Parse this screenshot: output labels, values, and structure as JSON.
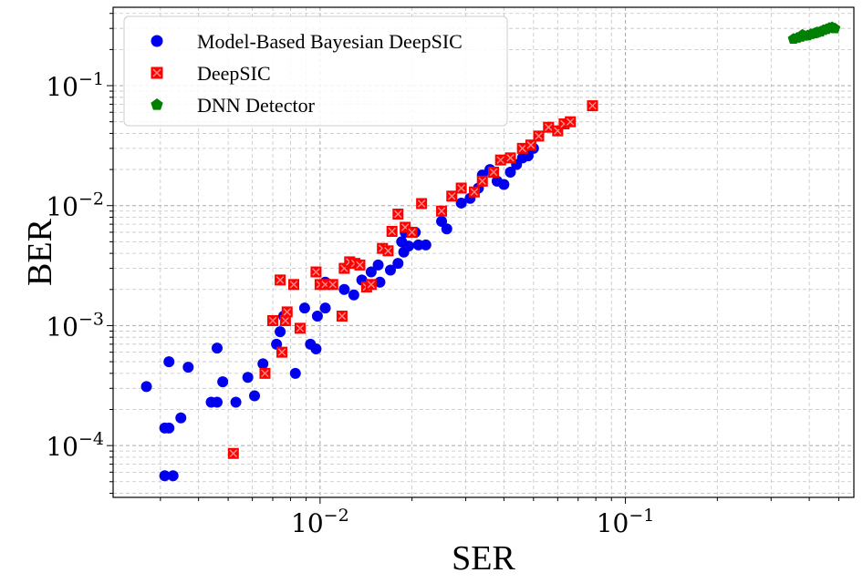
{
  "chart_data": {
    "type": "scatter",
    "xlabel": "SER",
    "ylabel": "BER",
    "xscale": "log",
    "yscale": "log",
    "xlim": [
      0.0021,
      0.56
    ],
    "ylim": [
      3.7e-05,
      0.45
    ],
    "grid": true,
    "grid_minor": true,
    "legend_position": "top-left",
    "xticks": [
      {
        "value": 0.01,
        "base": "10",
        "exp": "−2"
      },
      {
        "value": 0.1,
        "base": "10",
        "exp": "−1"
      }
    ],
    "yticks": [
      {
        "value": 0.0001,
        "base": "10",
        "exp": "−4"
      },
      {
        "value": 0.001,
        "base": "10",
        "exp": "−3"
      },
      {
        "value": 0.01,
        "base": "10",
        "exp": "−2"
      },
      {
        "value": 0.1,
        "base": "10",
        "exp": "−1"
      }
    ],
    "series": [
      {
        "name": "Model-Based Bayesian DeepSIC",
        "color": "#0000ee",
        "marker": "circle",
        "points": [
          [
            0.0027,
            0.00031
          ],
          [
            0.0031,
            0.00014
          ],
          [
            0.0032,
            0.00014
          ],
          [
            0.0032,
            0.0005
          ],
          [
            0.0035,
            0.00017
          ],
          [
            0.0037,
            0.00045
          ],
          [
            0.0031,
            5.6e-05
          ],
          [
            0.0033,
            5.6e-05
          ],
          [
            0.0044,
            0.00023
          ],
          [
            0.0046,
            0.00023
          ],
          [
            0.0046,
            0.00065
          ],
          [
            0.0048,
            0.00034
          ],
          [
            0.0053,
            0.00023
          ],
          [
            0.0058,
            0.00037
          ],
          [
            0.0061,
            0.00026
          ],
          [
            0.0065,
            0.00048
          ],
          [
            0.0072,
            0.0007
          ],
          [
            0.0074,
            0.00089
          ],
          [
            0.0076,
            0.0012
          ],
          [
            0.0083,
            0.0004
          ],
          [
            0.0089,
            0.0014
          ],
          [
            0.0093,
            0.0007
          ],
          [
            0.0097,
            0.00064
          ],
          [
            0.0098,
            0.0012
          ],
          [
            0.0104,
            0.0014
          ],
          [
            0.0104,
            0.0023
          ],
          [
            0.012,
            0.002
          ],
          [
            0.0129,
            0.0018
          ],
          [
            0.0137,
            0.0024
          ],
          [
            0.0147,
            0.0028
          ],
          [
            0.0155,
            0.0032
          ],
          [
            0.0157,
            0.0023
          ],
          [
            0.017,
            0.0029
          ],
          [
            0.018,
            0.0033
          ],
          [
            0.0185,
            0.005
          ],
          [
            0.0188,
            0.0041
          ],
          [
            0.019,
            0.006
          ],
          [
            0.0195,
            0.0046
          ],
          [
            0.0205,
            0.006
          ],
          [
            0.021,
            0.0047
          ],
          [
            0.0222,
            0.0047
          ],
          [
            0.025,
            0.0074
          ],
          [
            0.026,
            0.0064
          ],
          [
            0.029,
            0.0105
          ],
          [
            0.031,
            0.0115
          ],
          [
            0.033,
            0.014
          ],
          [
            0.034,
            0.018
          ],
          [
            0.036,
            0.02
          ],
          [
            0.038,
            0.016
          ],
          [
            0.04,
            0.015
          ],
          [
            0.042,
            0.019
          ],
          [
            0.044,
            0.022
          ],
          [
            0.046,
            0.025
          ],
          [
            0.048,
            0.026
          ],
          [
            0.05,
            0.03
          ]
        ]
      },
      {
        "name": "DeepSIC",
        "color": "#ff0000",
        "marker": "x-square",
        "points": [
          [
            0.0052,
            8.6e-05
          ],
          [
            0.0066,
            0.0004
          ],
          [
            0.007,
            0.0011
          ],
          [
            0.0074,
            0.0024
          ],
          [
            0.0075,
            0.0006
          ],
          [
            0.0077,
            0.0011
          ],
          [
            0.0078,
            0.0013
          ],
          [
            0.0082,
            0.0022
          ],
          [
            0.0086,
            0.00095
          ],
          [
            0.0097,
            0.0028
          ],
          [
            0.01,
            0.0022
          ],
          [
            0.0104,
            0.0022
          ],
          [
            0.011,
            0.0022
          ],
          [
            0.0118,
            0.0012
          ],
          [
            0.012,
            0.003
          ],
          [
            0.0125,
            0.0034
          ],
          [
            0.013,
            0.0033
          ],
          [
            0.0135,
            0.0032
          ],
          [
            0.0142,
            0.0021
          ],
          [
            0.0147,
            0.0022
          ],
          [
            0.016,
            0.0044
          ],
          [
            0.0167,
            0.0042
          ],
          [
            0.0172,
            0.0061
          ],
          [
            0.018,
            0.0085
          ],
          [
            0.019,
            0.0066
          ],
          [
            0.02,
            0.006
          ],
          [
            0.0215,
            0.0104
          ],
          [
            0.025,
            0.009
          ],
          [
            0.027,
            0.012
          ],
          [
            0.029,
            0.014
          ],
          [
            0.032,
            0.013
          ],
          [
            0.034,
            0.016
          ],
          [
            0.037,
            0.019
          ],
          [
            0.039,
            0.024
          ],
          [
            0.042,
            0.025
          ],
          [
            0.046,
            0.03
          ],
          [
            0.049,
            0.032
          ],
          [
            0.052,
            0.038
          ],
          [
            0.056,
            0.045
          ],
          [
            0.06,
            0.042
          ],
          [
            0.063,
            0.048
          ],
          [
            0.066,
            0.05
          ],
          [
            0.078,
            0.068
          ]
        ]
      },
      {
        "name": "DNN Detector",
        "color": "#008000",
        "marker": "pentagon",
        "points": [
          [
            0.355,
            0.245
          ],
          [
            0.365,
            0.25
          ],
          [
            0.375,
            0.255
          ],
          [
            0.385,
            0.26
          ],
          [
            0.395,
            0.262
          ],
          [
            0.405,
            0.268
          ],
          [
            0.415,
            0.272
          ],
          [
            0.425,
            0.278
          ],
          [
            0.435,
            0.282
          ],
          [
            0.445,
            0.29
          ],
          [
            0.455,
            0.295
          ],
          [
            0.465,
            0.302
          ],
          [
            0.475,
            0.306
          ],
          [
            0.485,
            0.3
          ],
          [
            0.38,
            0.265
          ],
          [
            0.42,
            0.275
          ]
        ]
      }
    ]
  }
}
